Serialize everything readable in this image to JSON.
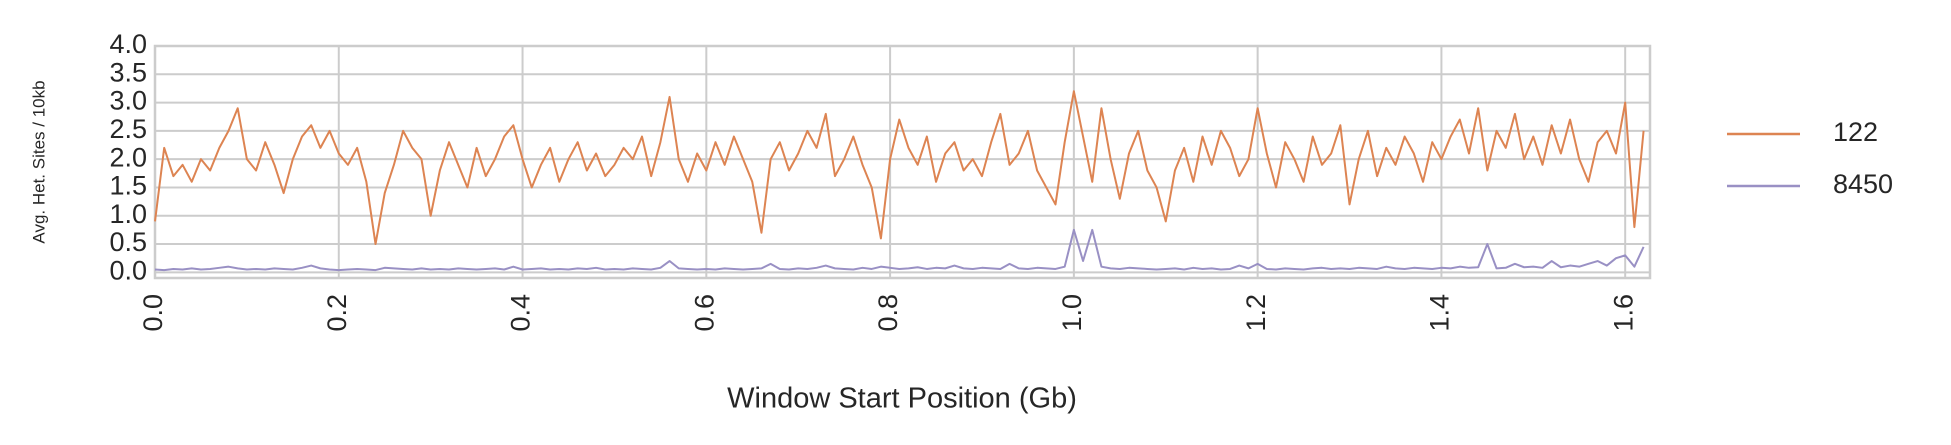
{
  "chart_data": {
    "type": "line",
    "xlabel": "Window Start Position (Gb)",
    "ylabel": "Avg. Het. Sites / 10kb",
    "grid": true,
    "xlim": [
      0,
      1.627
    ],
    "ylim": [
      -0.1,
      4.0
    ],
    "xticks": [
      {
        "value": 0,
        "label": "0.0"
      },
      0.2,
      0.4,
      0.6,
      0.8,
      {
        "value": 1,
        "label": "1.0"
      },
      1.2,
      1.4,
      1.6
    ],
    "yticks": [
      {
        "value": 0,
        "label": "0.0"
      },
      0.5,
      {
        "value": 1,
        "label": "1.0"
      },
      1.5,
      {
        "value": 2,
        "label": "2.0"
      },
      2.5,
      {
        "value": 3,
        "label": "3.0"
      },
      3.5,
      {
        "value": 4,
        "label": "4.0"
      }
    ],
    "x": [
      0,
      0.01,
      0.02,
      0.03,
      0.04,
      0.05,
      0.06,
      0.07,
      0.08,
      0.09,
      0.1,
      0.11,
      0.12,
      0.13,
      0.14,
      0.15,
      0.16,
      0.17,
      0.18,
      0.19,
      0.2,
      0.21,
      0.22,
      0.23,
      0.24,
      0.25,
      0.26,
      0.27,
      0.28,
      0.29,
      0.3,
      0.31,
      0.32,
      0.33,
      0.34,
      0.35,
      0.36,
      0.37,
      0.38,
      0.39,
      0.4,
      0.41,
      0.42,
      0.43,
      0.44,
      0.45,
      0.46,
      0.47,
      0.48,
      0.49,
      0.5,
      0.51,
      0.52,
      0.53,
      0.54,
      0.55,
      0.56,
      0.57,
      0.58,
      0.59,
      0.6,
      0.61,
      0.62,
      0.63,
      0.64,
      0.65,
      0.66,
      0.67,
      0.68,
      0.69,
      0.7,
      0.71,
      0.72,
      0.73,
      0.74,
      0.75,
      0.76,
      0.77,
      0.78,
      0.79,
      0.8,
      0.81,
      0.82,
      0.83,
      0.84,
      0.85,
      0.86,
      0.87,
      0.88,
      0.89,
      0.9,
      0.91,
      0.92,
      0.93,
      0.94,
      0.95,
      0.96,
      0.97,
      0.98,
      0.99,
      1.0,
      1.01,
      1.02,
      1.03,
      1.04,
      1.05,
      1.06,
      1.07,
      1.08,
      1.09,
      1.1,
      1.11,
      1.12,
      1.13,
      1.14,
      1.15,
      1.16,
      1.17,
      1.18,
      1.19,
      1.2,
      1.21,
      1.22,
      1.23,
      1.24,
      1.25,
      1.26,
      1.27,
      1.28,
      1.29,
      1.3,
      1.31,
      1.32,
      1.33,
      1.34,
      1.35,
      1.36,
      1.37,
      1.38,
      1.39,
      1.4,
      1.41,
      1.42,
      1.43,
      1.44,
      1.45,
      1.46,
      1.47,
      1.48,
      1.49,
      1.5,
      1.51,
      1.52,
      1.53,
      1.54,
      1.55,
      1.56,
      1.57,
      1.58,
      1.59,
      1.6,
      1.61,
      1.62
    ],
    "series": [
      {
        "name": "122",
        "color": "#dd8452",
        "values": [
          0.9,
          2.2,
          1.7,
          1.9,
          1.6,
          2.0,
          1.8,
          2.2,
          2.5,
          2.9,
          2.0,
          1.8,
          2.3,
          1.9,
          1.4,
          2.0,
          2.4,
          2.6,
          2.2,
          2.5,
          2.1,
          1.9,
          2.2,
          1.6,
          0.5,
          1.4,
          1.9,
          2.5,
          2.2,
          2.0,
          1.0,
          1.8,
          2.3,
          1.9,
          1.5,
          2.2,
          1.7,
          2.0,
          2.4,
          2.6,
          2.0,
          1.5,
          1.9,
          2.2,
          1.6,
          2.0,
          2.3,
          1.8,
          2.1,
          1.7,
          1.9,
          2.2,
          2.0,
          2.4,
          1.7,
          2.3,
          3.1,
          2.0,
          1.6,
          2.1,
          1.8,
          2.3,
          1.9,
          2.4,
          2.0,
          1.6,
          0.7,
          2.0,
          2.3,
          1.8,
          2.1,
          2.5,
          2.2,
          2.8,
          1.7,
          2.0,
          2.4,
          1.9,
          1.5,
          0.6,
          2.0,
          2.7,
          2.2,
          1.9,
          2.4,
          1.6,
          2.1,
          2.3,
          1.8,
          2.0,
          1.7,
          2.3,
          2.8,
          1.9,
          2.1,
          2.5,
          1.8,
          1.5,
          1.2,
          2.3,
          3.2,
          2.4,
          1.6,
          2.9,
          2.0,
          1.3,
          2.1,
          2.5,
          1.8,
          1.5,
          0.9,
          1.8,
          2.2,
          1.6,
          2.4,
          1.9,
          2.5,
          2.2,
          1.7,
          2.0,
          2.9,
          2.1,
          1.5,
          2.3,
          2.0,
          1.6,
          2.4,
          1.9,
          2.1,
          2.6,
          1.2,
          2.0,
          2.5,
          1.7,
          2.2,
          1.9,
          2.4,
          2.1,
          1.6,
          2.3,
          2.0,
          2.4,
          2.7,
          2.1,
          2.9,
          1.8,
          2.5,
          2.2,
          2.8,
          2.0,
          2.4,
          1.9,
          2.6,
          2.1,
          2.7,
          2.0,
          1.6,
          2.3,
          2.5,
          2.1,
          3.0,
          0.8,
          2.5
        ]
      },
      {
        "name": "8450",
        "color": "#9990c4",
        "values": [
          0.05,
          0.04,
          0.06,
          0.05,
          0.07,
          0.05,
          0.06,
          0.08,
          0.1,
          0.07,
          0.05,
          0.06,
          0.05,
          0.07,
          0.06,
          0.05,
          0.08,
          0.12,
          0.07,
          0.05,
          0.04,
          0.05,
          0.06,
          0.05,
          0.04,
          0.08,
          0.07,
          0.06,
          0.05,
          0.07,
          0.05,
          0.06,
          0.05,
          0.07,
          0.06,
          0.05,
          0.06,
          0.07,
          0.05,
          0.1,
          0.05,
          0.06,
          0.07,
          0.05,
          0.06,
          0.05,
          0.07,
          0.06,
          0.08,
          0.05,
          0.06,
          0.05,
          0.07,
          0.06,
          0.05,
          0.08,
          0.2,
          0.07,
          0.06,
          0.05,
          0.06,
          0.05,
          0.07,
          0.06,
          0.05,
          0.06,
          0.07,
          0.15,
          0.06,
          0.05,
          0.07,
          0.06,
          0.08,
          0.12,
          0.07,
          0.06,
          0.05,
          0.08,
          0.06,
          0.1,
          0.08,
          0.06,
          0.07,
          0.09,
          0.06,
          0.08,
          0.07,
          0.12,
          0.07,
          0.06,
          0.08,
          0.07,
          0.06,
          0.15,
          0.07,
          0.06,
          0.08,
          0.07,
          0.06,
          0.1,
          0.75,
          0.2,
          0.75,
          0.1,
          0.07,
          0.06,
          0.08,
          0.07,
          0.06,
          0.05,
          0.06,
          0.07,
          0.05,
          0.08,
          0.06,
          0.07,
          0.05,
          0.06,
          0.12,
          0.07,
          0.15,
          0.06,
          0.05,
          0.07,
          0.06,
          0.05,
          0.07,
          0.08,
          0.06,
          0.07,
          0.06,
          0.08,
          0.07,
          0.06,
          0.1,
          0.07,
          0.06,
          0.08,
          0.07,
          0.06,
          0.08,
          0.07,
          0.1,
          0.08,
          0.09,
          0.5,
          0.07,
          0.08,
          0.15,
          0.09,
          0.1,
          0.08,
          0.2,
          0.09,
          0.12,
          0.1,
          0.15,
          0.2,
          0.12,
          0.25,
          0.3,
          0.1,
          0.45
        ]
      }
    ]
  }
}
